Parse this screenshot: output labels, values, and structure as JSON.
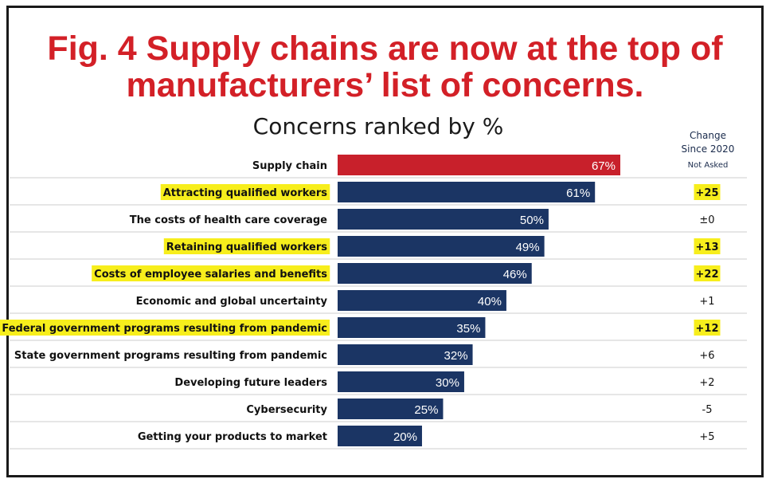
{
  "figure": {
    "title": "Fig. 4 Supply chains are now at the top of manufacturers’ list of concerns."
  },
  "chart_data": {
    "type": "bar",
    "orientation": "horizontal",
    "title": "Concerns ranked by %",
    "xlabel": "",
    "ylabel": "",
    "xlim": [
      0,
      100
    ],
    "grid": false,
    "categories": [
      "Supply chain",
      "Attracting qualified workers",
      "The costs of health care coverage",
      "Retaining qualified workers",
      "Costs of employee salaries and benefits",
      "Economic and global uncertainty",
      "Federal government programs resulting from pandemic",
      "State government programs resulting from pandemic",
      "Developing future leaders",
      "Cybersecurity",
      "Getting your products to market"
    ],
    "values": [
      67,
      61,
      50,
      49,
      46,
      40,
      35,
      32,
      30,
      25,
      20
    ],
    "value_labels": [
      "67%",
      "61%",
      "50%",
      "49%",
      "46%",
      "40%",
      "35%",
      "32%",
      "30%",
      "25%",
      "20%"
    ],
    "highlighted": [
      false,
      true,
      false,
      true,
      true,
      false,
      true,
      false,
      false,
      false,
      false
    ],
    "change_column": {
      "header_line1": "Change",
      "header_line2": "Since 2020",
      "subheader": "Not Asked",
      "values": [
        "",
        "+25",
        "±0",
        "+13",
        "+22",
        "+1",
        "+12",
        "+6",
        "+2",
        "-5",
        "+5"
      ]
    },
    "colors": {
      "top_bar": "#c8202b",
      "bar": "#1b3564",
      "highlight": "#f7ee1c",
      "divider": "#cccccc"
    }
  }
}
